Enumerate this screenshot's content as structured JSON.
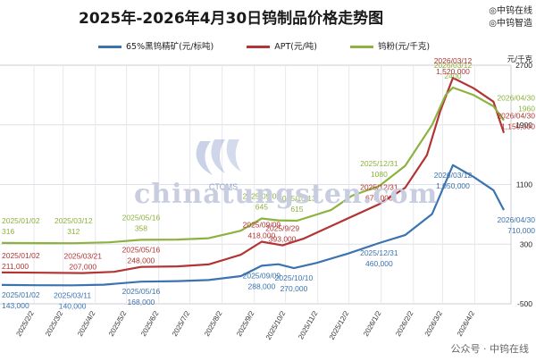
{
  "title": "2025年-2026年4月30日钨制品价格走势图",
  "brand": {
    "line1": "◎中钨在线",
    "line2": "◎中钨智造"
  },
  "watermark": {
    "text": "chinatungsten.com",
    "logo_label": "CTOMS"
  },
  "footer": "公众号 · 中钨在线",
  "colors": {
    "concentrate": "#3b73b0",
    "apt": "#b23434",
    "powder": "#8db23f",
    "grid": "#dde0e6"
  },
  "chart_data": {
    "type": "line",
    "legend_position": "top",
    "y_unit": "元/千克",
    "y_ticks": [
      2700,
      1900,
      1100,
      300,
      -500
    ],
    "ylim": [
      -500,
      2700
    ],
    "x_tick_labels": [
      "2025/2/2",
      "2025/3/2",
      "2025/4/2",
      "2025/5/2",
      "2025/6/2",
      "2025/7/2",
      "2025/8/2",
      "2025/9/2",
      "2025/10/2",
      "2025/11/2",
      "2025/12/2",
      "2026/1/2",
      "2026/2/2",
      "2026/3/2",
      "2026/4/2"
    ],
    "x_range": [
      "2025/01/02",
      "2026/04/30"
    ],
    "grid": true,
    "series": [
      {
        "name": "65%黑钨精矿(元/标吨)",
        "key": "concentrate",
        "points": [
          [
            "2025/01/02",
            143000
          ],
          [
            "2025/02/05",
            141000
          ],
          [
            "2025/03/11",
            140000
          ],
          [
            "2025/04/10",
            145000
          ],
          [
            "2025/05/16",
            168000
          ],
          [
            "2025/06/20",
            172000
          ],
          [
            "2025/07/20",
            180000
          ],
          [
            "2025/08/20",
            210000
          ],
          [
            "2025/09/09",
            288000
          ],
          [
            "2025/09/25",
            300000
          ],
          [
            "2025/10/10",
            270000
          ],
          [
            "2025/11/01",
            310000
          ],
          [
            "2025/12/01",
            380000
          ],
          [
            "2025/12/31",
            460000
          ],
          [
            "2026/01/25",
            520000
          ],
          [
            "2026/02/20",
            680000
          ],
          [
            "2026/03/05",
            920000
          ],
          [
            "2026/03/12",
            1050000
          ],
          [
            "2026/04/01",
            960000
          ],
          [
            "2026/04/20",
            860000
          ],
          [
            "2026/04/30",
            710000
          ]
        ]
      },
      {
        "name": "APT(元/吨)",
        "key": "apt",
        "points": [
          [
            "2025/01/02",
            211000
          ],
          [
            "2025/02/10",
            209000
          ],
          [
            "2025/03/21",
            207000
          ],
          [
            "2025/04/20",
            215000
          ],
          [
            "2025/05/16",
            248000
          ],
          [
            "2025/06/20",
            252000
          ],
          [
            "2025/07/20",
            265000
          ],
          [
            "2025/08/20",
            330000
          ],
          [
            "2025/09/09",
            418000
          ],
          [
            "2025/09/29",
            393000
          ],
          [
            "2025/10/20",
            440000
          ],
          [
            "2025/11/20",
            540000
          ],
          [
            "2025/12/31",
            670000
          ],
          [
            "2026/01/25",
            780000
          ],
          [
            "2026/02/15",
            1000000
          ],
          [
            "2026/02/28",
            1300000
          ],
          [
            "2026/03/12",
            1520000
          ],
          [
            "2026/04/01",
            1450000
          ],
          [
            "2026/04/20",
            1360000
          ],
          [
            "2026/04/30",
            1150000
          ]
        ]
      },
      {
        "name": "钨粉(元/千克)",
        "key": "powder",
        "points": [
          [
            "2025/01/02",
            316
          ],
          [
            "2025/02/10",
            314
          ],
          [
            "2025/03/12",
            312
          ],
          [
            "2025/04/15",
            325
          ],
          [
            "2025/05/16",
            358
          ],
          [
            "2025/06/20",
            362
          ],
          [
            "2025/07/20",
            380
          ],
          [
            "2025/08/20",
            480
          ],
          [
            "2025/09/09",
            645
          ],
          [
            "2025/09/25",
            620
          ],
          [
            "2025/10/13",
            615
          ],
          [
            "2025/11/15",
            760
          ],
          [
            "2025/12/05",
            950
          ],
          [
            "2025/12/31",
            1080
          ],
          [
            "2026/01/25",
            1350
          ],
          [
            "2026/02/20",
            1900
          ],
          [
            "2026/03/05",
            2300
          ],
          [
            "2026/03/12",
            2400
          ],
          [
            "2026/04/01",
            2300
          ],
          [
            "2026/04/20",
            2150
          ],
          [
            "2026/04/30",
            1960
          ]
        ]
      }
    ],
    "annotations": [
      {
        "series": "powder",
        "date": "2025/01/02",
        "value": 316,
        "date_label": "2025/01/02",
        "value_label": "316"
      },
      {
        "series": "powder",
        "date": "2025/03/12",
        "value": 312,
        "date_label": "2025/03/12",
        "value_label": "312"
      },
      {
        "series": "powder",
        "date": "2025/05/16",
        "value": 358,
        "date_label": "2025/05/16",
        "value_label": "358"
      },
      {
        "series": "powder",
        "date": "2025/09/09",
        "value": 645,
        "date_label": "2025/09/09",
        "value_label": "645"
      },
      {
        "series": "powder",
        "date": "2025/10/13",
        "value": 615,
        "date_label": "2025/10/13",
        "value_label": "615"
      },
      {
        "series": "powder",
        "date": "2025/12/31",
        "value": 1080,
        "date_label": "2025/12/31",
        "value_label": "1080"
      },
      {
        "series": "powder",
        "date": "2026/03/12",
        "value": 2400,
        "date_label": "2026/03/12",
        "value_label": "2400"
      },
      {
        "series": "powder",
        "date": "2026/04/30",
        "value": 1960,
        "date_label": "2026/04/30",
        "value_label": "1960"
      },
      {
        "series": "apt",
        "date": "2025/01/02",
        "value": 211000,
        "date_label": "2025/01/02",
        "value_label": "211,000"
      },
      {
        "series": "apt",
        "date": "2025/03/21",
        "value": 207000,
        "date_label": "2025/03/21",
        "value_label": "207,000"
      },
      {
        "series": "apt",
        "date": "2025/05/16",
        "value": 248000,
        "date_label": "2025/05/16",
        "value_label": "248,000"
      },
      {
        "series": "apt",
        "date": "2025/09/09",
        "value": 418000,
        "date_label": "2025/09/09",
        "value_label": "418,000"
      },
      {
        "series": "apt",
        "date": "2025/09/29",
        "value": 393000,
        "date_label": "2025/9/29",
        "value_label": "393,000"
      },
      {
        "series": "apt",
        "date": "2025/12/31",
        "value": 670000,
        "date_label": "2025/12/31",
        "value_label": "670,000"
      },
      {
        "series": "apt",
        "date": "2026/03/12",
        "value": 1520000,
        "date_label": "2026/03/12",
        "value_label": "1,520,000"
      },
      {
        "series": "apt",
        "date": "2026/04/30",
        "value": 1150000,
        "date_label": "2026/04/30",
        "value_label": "1,150,000"
      },
      {
        "series": "concentrate",
        "date": "2025/01/02",
        "value": 143000,
        "date_label": "2025/01/02",
        "value_label": "143,000"
      },
      {
        "series": "concentrate",
        "date": "2025/03/11",
        "value": 140000,
        "date_label": "2025/03/11",
        "value_label": "140,000"
      },
      {
        "series": "concentrate",
        "date": "2025/05/16",
        "value": 168000,
        "date_label": "2025/05/16",
        "value_label": "168,000"
      },
      {
        "series": "concentrate",
        "date": "2025/09/09",
        "value": 288000,
        "date_label": "2025/09/09",
        "value_label": "288,000"
      },
      {
        "series": "concentrate",
        "date": "2025/10/10",
        "value": 270000,
        "date_label": "2025/10/10",
        "value_label": "270,000"
      },
      {
        "series": "concentrate",
        "date": "2025/12/31",
        "value": 460000,
        "date_label": "2025/12/31",
        "value_label": "460,000"
      },
      {
        "series": "concentrate",
        "date": "2026/03/12",
        "value": 1050000,
        "date_label": "2026/03/12",
        "value_label": "1,050,000"
      },
      {
        "series": "concentrate",
        "date": "2026/04/30",
        "value": 710000,
        "date_label": "2026/04/30",
        "value_label": "710,000"
      }
    ]
  }
}
